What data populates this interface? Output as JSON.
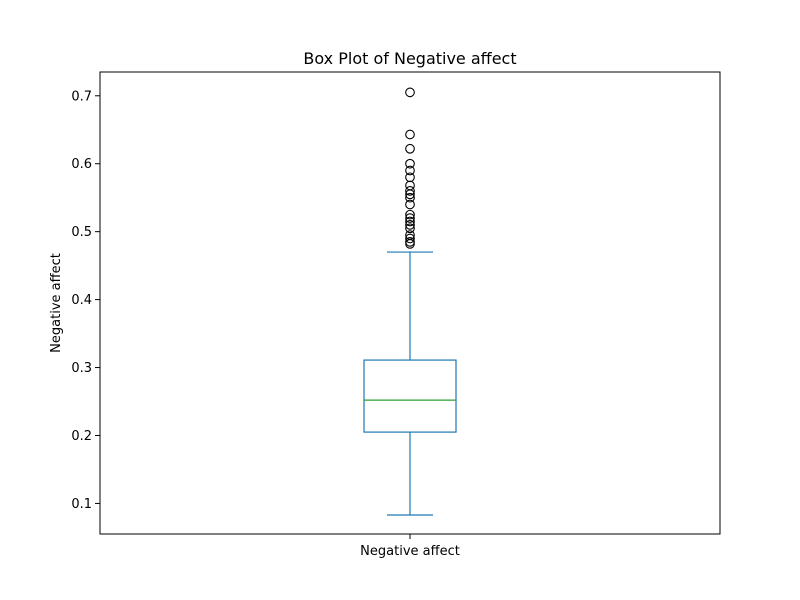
{
  "chart_data": {
    "type": "box",
    "title": "Box Plot of Negative affect",
    "xlabel": "",
    "ylabel": "Negative affect",
    "categories": [
      "Negative affect"
    ],
    "ylim": [
      0.055,
      0.735
    ],
    "yticks": [
      0.1,
      0.2,
      0.3,
      0.4,
      0.5,
      0.6,
      0.7
    ],
    "ytick_labels": [
      "0.1",
      "0.2",
      "0.3",
      "0.4",
      "0.5",
      "0.6",
      "0.7"
    ],
    "grid": false,
    "legend": "none",
    "series": [
      {
        "whisker_low": 0.083,
        "q1": 0.205,
        "median": 0.252,
        "q3": 0.311,
        "whisker_high": 0.47,
        "outliers": [
          0.705,
          0.643,
          0.622,
          0.6,
          0.59,
          0.58,
          0.568,
          0.56,
          0.555,
          0.55,
          0.54,
          0.525,
          0.52,
          0.515,
          0.51,
          0.505,
          0.495,
          0.49,
          0.485,
          0.482
        ]
      }
    ],
    "colors": {
      "box": "#1f77b4",
      "median": "#2ca02c",
      "outlier_edge": "#000000",
      "frame": "#000000"
    }
  }
}
